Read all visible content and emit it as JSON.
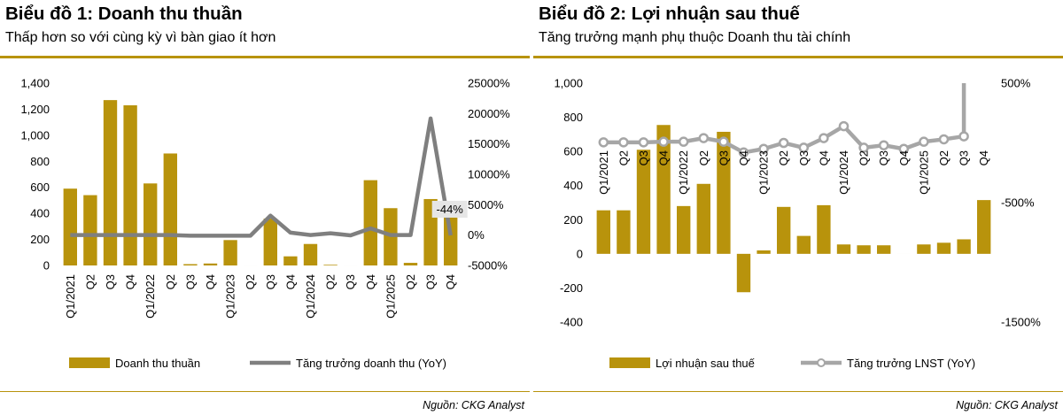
{
  "chart_data": [
    {
      "type": "bar",
      "title": "Biểu đồ 1: Doanh thu thuần",
      "subtitle": "Thấp hơn so với cùng kỳ vì bàn giao ít hơn",
      "source": "Nguồn: CKG Analyst",
      "categories": [
        "Q1/2021",
        "Q2",
        "Q3",
        "Q4",
        "Q1/2022",
        "Q2",
        "Q3",
        "Q4",
        "Q1/2023",
        "Q2",
        "Q3",
        "Q4",
        "Q1/2024",
        "Q2",
        "Q3",
        "Q4",
        "Q1/2025",
        "Q2",
        "Q3",
        "Q4"
      ],
      "left_axis": {
        "ylim": [
          0,
          1400
        ],
        "ticks": [
          0,
          200,
          400,
          600,
          800,
          1000,
          1200,
          1400
        ],
        "tick_labels": [
          "0",
          "200",
          "400",
          "600",
          "800",
          "1,000",
          "1,200",
          "1,400"
        ]
      },
      "right_axis": {
        "ylim": [
          -5000,
          25000
        ],
        "ticks": [
          -5000,
          0,
          5000,
          10000,
          15000,
          20000,
          25000
        ],
        "tick_labels": [
          "-5000%",
          "0%",
          "5000%",
          "10000%",
          "15000%",
          "20000%",
          "25000%"
        ]
      },
      "series": [
        {
          "name": "Doanh thu thuần",
          "kind": "bar",
          "axis": "left",
          "color": "#b8930c",
          "values": [
            590,
            540,
            1270,
            1230,
            630,
            860,
            10,
            15,
            195,
            0,
            360,
            70,
            165,
            5,
            0,
            655,
            440,
            20,
            510,
            405
          ]
        },
        {
          "name": "Tăng trưởng doanh thu (YoY)",
          "kind": "line",
          "axis": "right",
          "color": "#7f7f7f",
          "values": [
            0,
            0,
            0,
            0,
            0,
            0,
            -100,
            -100,
            -100,
            -100,
            3200,
            400,
            0,
            300,
            -50,
            1100,
            0,
            0,
            19200,
            -44
          ]
        }
      ],
      "annotations": [
        {
          "text": "-44%",
          "index": 19,
          "series": 1
        }
      ],
      "legend": "bottom"
    },
    {
      "type": "bar",
      "title": "Biểu đồ 2: Lợi nhuận sau thuế",
      "subtitle": "Tăng trưởng mạnh phụ thuộc Doanh thu tài chính",
      "source": "Nguồn: CKG Analyst",
      "categories": [
        "Q1/2021",
        "Q2",
        "Q3",
        "Q4",
        "Q1/2022",
        "Q2",
        "Q3",
        "Q4",
        "Q1/2023",
        "Q2",
        "Q3",
        "Q4",
        "Q1/2024",
        "Q2",
        "Q3",
        "Q4",
        "Q1/2025",
        "Q2",
        "Q3",
        "Q4"
      ],
      "left_axis": {
        "ylim": [
          -400,
          1000
        ],
        "ticks": [
          -400,
          -200,
          0,
          200,
          400,
          600,
          800,
          1000
        ],
        "tick_labels": [
          "-400",
          "-200",
          "0",
          "200",
          "400",
          "600",
          "800",
          "1,000"
        ]
      },
      "right_axis": {
        "ylim": [
          -1500,
          500
        ],
        "ticks": [
          -1500,
          -500,
          500
        ],
        "tick_labels": [
          "-1500%",
          "-500%",
          "500%"
        ]
      },
      "series": [
        {
          "name": "Lợi nhuận sau thuế",
          "kind": "bar",
          "axis": "left",
          "color": "#b8930c",
          "values": [
            255,
            255,
            610,
            755,
            280,
            410,
            715,
            -225,
            20,
            275,
            105,
            285,
            55,
            50,
            50,
            0,
            55,
            65,
            85,
            315
          ]
        },
        {
          "name": "Tăng trưởng LNST (YoY)",
          "kind": "line",
          "axis": "right",
          "color": "#a6a6a6",
          "values": [
            5,
            5,
            5,
            10,
            10,
            40,
            10,
            -80,
            -50,
            0,
            -40,
            40,
            140,
            -40,
            -20,
            -50,
            10,
            30,
            55,
            500
          ]
        }
      ],
      "legend": "bottom"
    }
  ]
}
